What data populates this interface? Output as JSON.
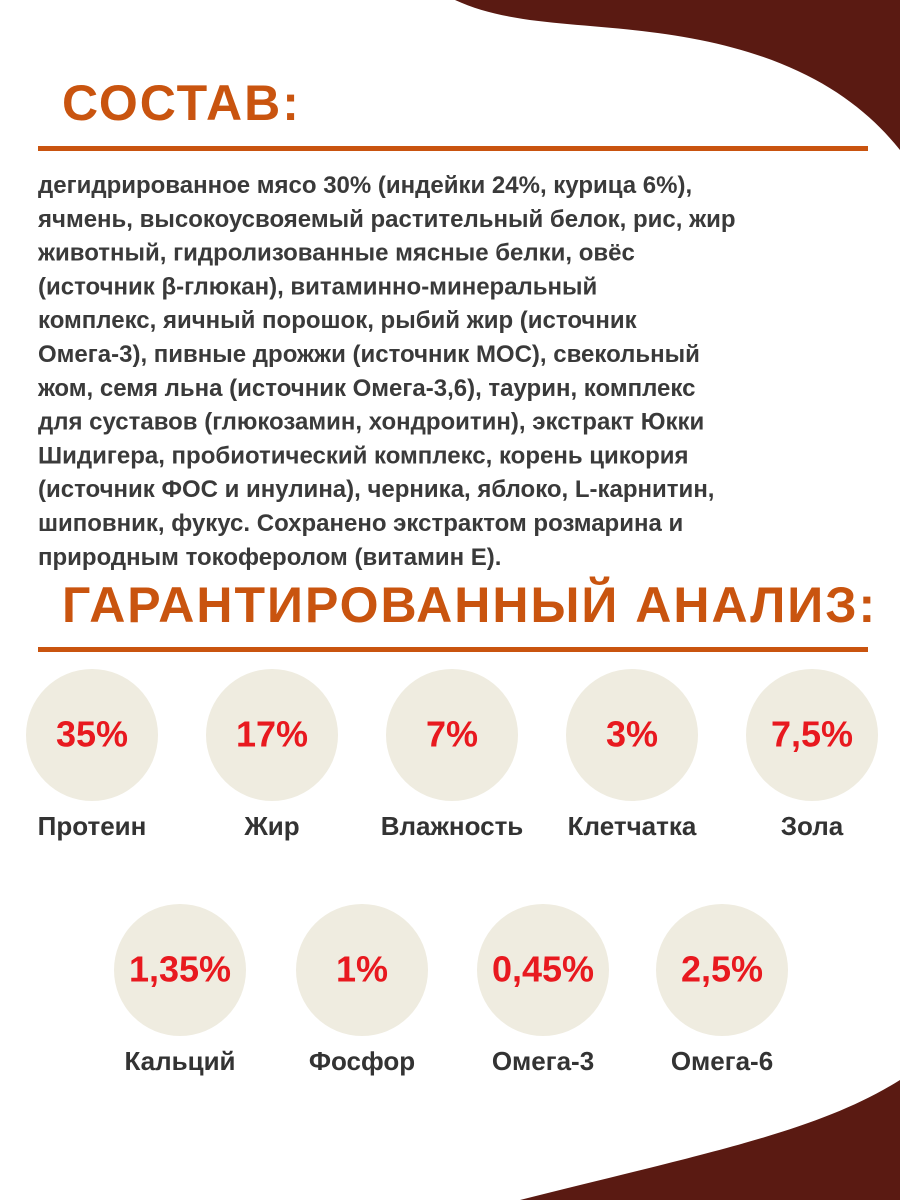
{
  "composition": {
    "title": "СОСТАВ:",
    "lines": [
      "дегидрированное мясо 30% (индейки 24%, курица 6%),",
      "ячмень, высокоусвояемый растительный белок, рис, жир",
      "животный, гидролизованные мясные белки, овёс",
      "(источник β-глюкан), витаминно-минеральный",
      "комплекс, яичный порошок, рыбий жир (источник",
      "Омега-3), пивные дрожжи (источник МОС), свекольный",
      "жом, семя льна (источник Омега-3,6), таурин, комплекс",
      "для суставов (глюкозамин, хондроитин), экстракт Юкки",
      "Шидигера, пробиотический комплекс, корень цикория",
      "(источник ФОС и инулина), черника, яблоко, L-карнитин,",
      "шиповник, фукус. Сохранено экстрактом розмарина и",
      "природным токоферолом (витамин Е)."
    ]
  },
  "analysis": {
    "title": "ГАРАНТИРОВАННЫЙ АНАЛИЗ:",
    "items": [
      {
        "value": "35%",
        "label": "Протеин"
      },
      {
        "value": "17%",
        "label": "Жир"
      },
      {
        "value": "7%",
        "label": "Влажность"
      },
      {
        "value": "3%",
        "label": "Клетчатка"
      },
      {
        "value": "7,5%",
        "label": "Зола"
      },
      {
        "value": "1,35%",
        "label": "Кальций"
      },
      {
        "value": "1%",
        "label": "Фосфор"
      },
      {
        "value": "0,45%",
        "label": "Омега-3"
      },
      {
        "value": "2,5%",
        "label": "Омега-6"
      }
    ]
  }
}
